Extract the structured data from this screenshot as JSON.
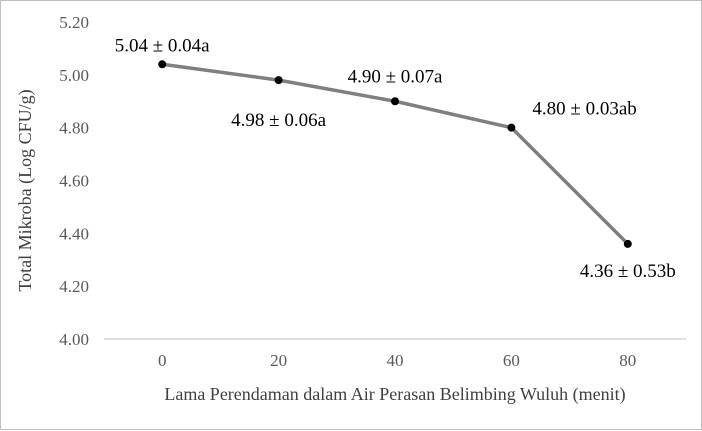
{
  "chart_data": {
    "type": "line",
    "title": "",
    "xlabel": "Lama Perendaman dalam Air Perasan Belimbing Wuluh (menit)",
    "ylabel": "Total Mikroba (Log CFU/g)",
    "x": [
      0,
      20,
      40,
      60,
      80
    ],
    "x_tick_labels": [
      "0",
      "20",
      "40",
      "60",
      "80"
    ],
    "y_tick_labels": [
      "4.00",
      "4.20",
      "4.40",
      "4.60",
      "4.80",
      "5.00",
      "5.20"
    ],
    "ylim": [
      4.0,
      5.2
    ],
    "grid": false,
    "legend": "none",
    "series": [
      {
        "values": [
          5.04,
          4.98,
          4.9,
          4.8,
          4.36
        ],
        "labels": [
          "5.04 ± 0.04a",
          "4.98 ± 0.06a",
          "4.90 ± 0.07a",
          "4.80 ± 0.03ab",
          "4.36 ± 0.53b"
        ]
      }
    ],
    "colors": {
      "line": "#7f7f7f",
      "marker": "#000000",
      "axis": "#bfbfbf"
    }
  }
}
